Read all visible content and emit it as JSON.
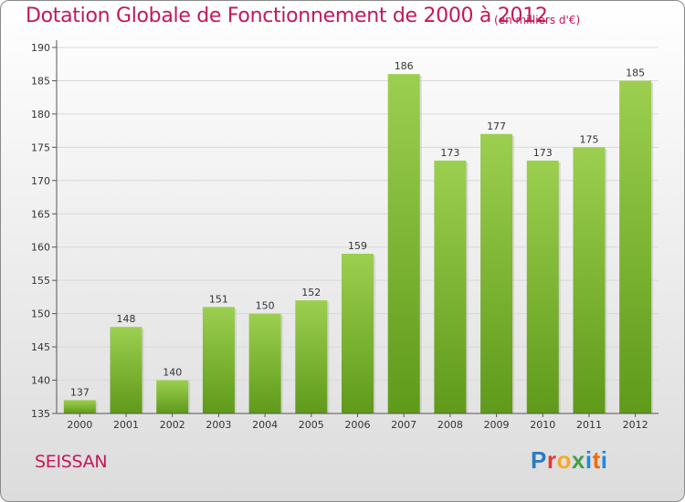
{
  "header": {
    "title": "Dotation Globale de Fonctionnement de 2000 à 2012",
    "subtitle": "(en milliers d'€)"
  },
  "footer": {
    "commune": "SEISSAN",
    "brand": {
      "p": "P",
      "r": "r",
      "o": "o",
      "x": "x",
      "i": "i",
      "t": "t",
      "i2": "i"
    }
  },
  "colors": {
    "bar_light": "#9ccf4f",
    "bar_dark": "#5f9a1a",
    "title": "#c2185b"
  },
  "chart_data": {
    "type": "bar",
    "title": "Dotation Globale de Fonctionnement de 2000 à 2012",
    "subtitle": "(en milliers d'€)",
    "categories": [
      "2000",
      "2001",
      "2002",
      "2003",
      "2004",
      "2005",
      "2006",
      "2007",
      "2008",
      "2009",
      "2010",
      "2011",
      "2012"
    ],
    "values": [
      137,
      148,
      140,
      151,
      150,
      152,
      159,
      186,
      173,
      177,
      173,
      175,
      185
    ],
    "ylim": [
      135,
      190
    ],
    "yticks": [
      135,
      140,
      145,
      150,
      155,
      160,
      165,
      170,
      175,
      180,
      185,
      190
    ],
    "grid": true
  }
}
